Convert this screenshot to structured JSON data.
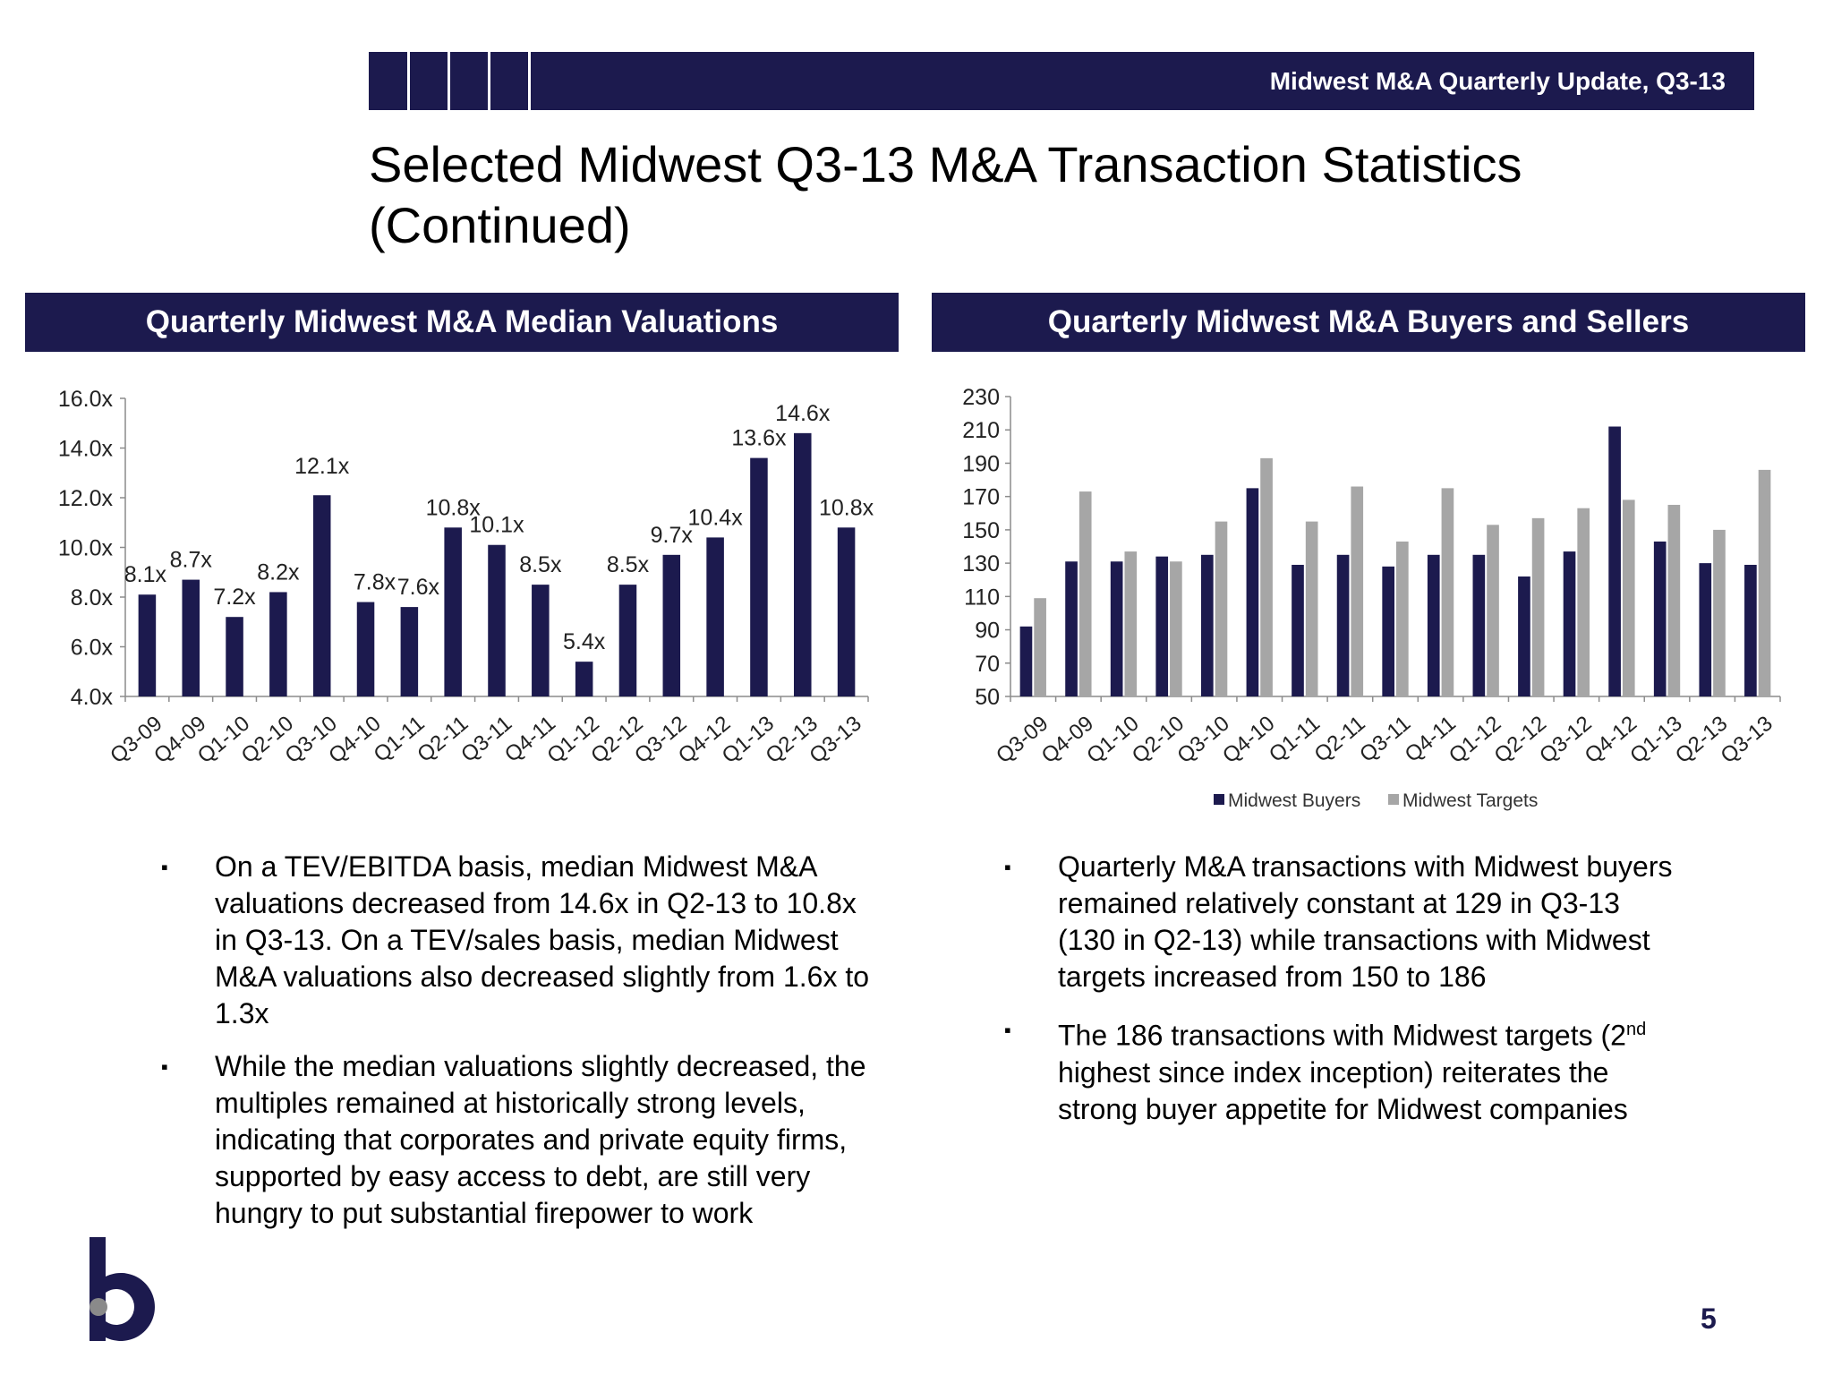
{
  "header": {
    "title": "Midwest M&A Quarterly Update, Q3-13"
  },
  "page_title": "Selected Midwest Q3-13 M&A Transaction Statistics (Continued)",
  "colors": {
    "navy": "#1c1a4e",
    "gray": "#a6a6a6"
  },
  "left_panel": {
    "title": "Quarterly Midwest M&A Median Valuations",
    "bullets": [
      "On a TEV/EBITDA basis, median Midwest M&A valuations decreased from 14.6x in Q2-13 to 10.8x in Q3-13. On a TEV/sales basis, median Midwest M&A valuations also decreased slightly from 1.6x to 1.3x",
      "While the median valuations slightly decreased, the multiples remained at historically strong levels, indicating that corporates and private equity firms, supported by easy access to debt, are still very hungry to put substantial firepower to work"
    ]
  },
  "right_panel": {
    "title": "Quarterly Midwest M&A Buyers and Sellers",
    "bullets": [
      {
        "pre": "Quarterly M&A transactions with Midwest buyers remained relatively constant at 129 in Q3-13 (130 in Q2-13) while transactions with Midwest targets increased from 150 to 186"
      },
      {
        "pre": "The 186 transactions with Midwest targets (2",
        "sup": "nd",
        "post": " highest since index inception) reiterates the strong buyer appetite for Midwest companies"
      }
    ]
  },
  "chart_data": [
    {
      "type": "bar",
      "title": "Quarterly Midwest M&A Median Valuations",
      "categories": [
        "Q3-09",
        "Q4-09",
        "Q1-10",
        "Q2-10",
        "Q3-10",
        "Q4-10",
        "Q1-11",
        "Q2-11",
        "Q3-11",
        "Q4-11",
        "Q1-12",
        "Q2-12",
        "Q3-12",
        "Q4-12",
        "Q1-13",
        "Q2-13",
        "Q3-13"
      ],
      "values": [
        8.1,
        8.7,
        7.2,
        8.2,
        12.1,
        7.8,
        7.6,
        10.8,
        10.1,
        8.5,
        5.4,
        8.5,
        9.7,
        10.4,
        13.6,
        14.6,
        10.8
      ],
      "data_labels": [
        "8.1x",
        "8.7x",
        "7.2x",
        "8.2x",
        "12.1x",
        "7.8x",
        "7.6x",
        "10.8x",
        "10.1x",
        "8.5x",
        "5.4x",
        "8.5x",
        "9.7x",
        "10.4x",
        "13.6x",
        "14.6x",
        "10.8x"
      ],
      "ylim": [
        4,
        16
      ],
      "yticks": [
        4,
        6,
        8,
        10,
        12,
        14,
        16
      ],
      "ytick_labels": [
        "4.0x",
        "6.0x",
        "8.0x",
        "10.0x",
        "12.0x",
        "14.0x",
        "16.0x"
      ],
      "color": "#1c1a4e",
      "grid": false,
      "legend": "none"
    },
    {
      "type": "bar",
      "title": "Quarterly Midwest M&A Buyers and Sellers",
      "categories": [
        "Q3-09",
        "Q4-09",
        "Q1-10",
        "Q2-10",
        "Q3-10",
        "Q4-10",
        "Q1-11",
        "Q2-11",
        "Q3-11",
        "Q4-11",
        "Q1-12",
        "Q2-12",
        "Q3-12",
        "Q4-12",
        "Q1-13",
        "Q2-13",
        "Q3-13"
      ],
      "series": [
        {
          "name": "Midwest Buyers",
          "color": "#1c1a4e",
          "values": [
            92,
            131,
            131,
            134,
            135,
            175,
            129,
            135,
            128,
            135,
            135,
            122,
            137,
            212,
            143,
            130,
            129
          ]
        },
        {
          "name": "Midwest Targets",
          "color": "#a6a6a6",
          "values": [
            109,
            173,
            137,
            131,
            155,
            193,
            155,
            176,
            143,
            175,
            153,
            157,
            163,
            168,
            165,
            150,
            186
          ]
        }
      ],
      "ylim": [
        50,
        230
      ],
      "yticks": [
        50,
        70,
        90,
        110,
        130,
        150,
        170,
        190,
        210,
        230
      ],
      "grid": false,
      "legend": "bottom"
    }
  ],
  "page_number": "5"
}
